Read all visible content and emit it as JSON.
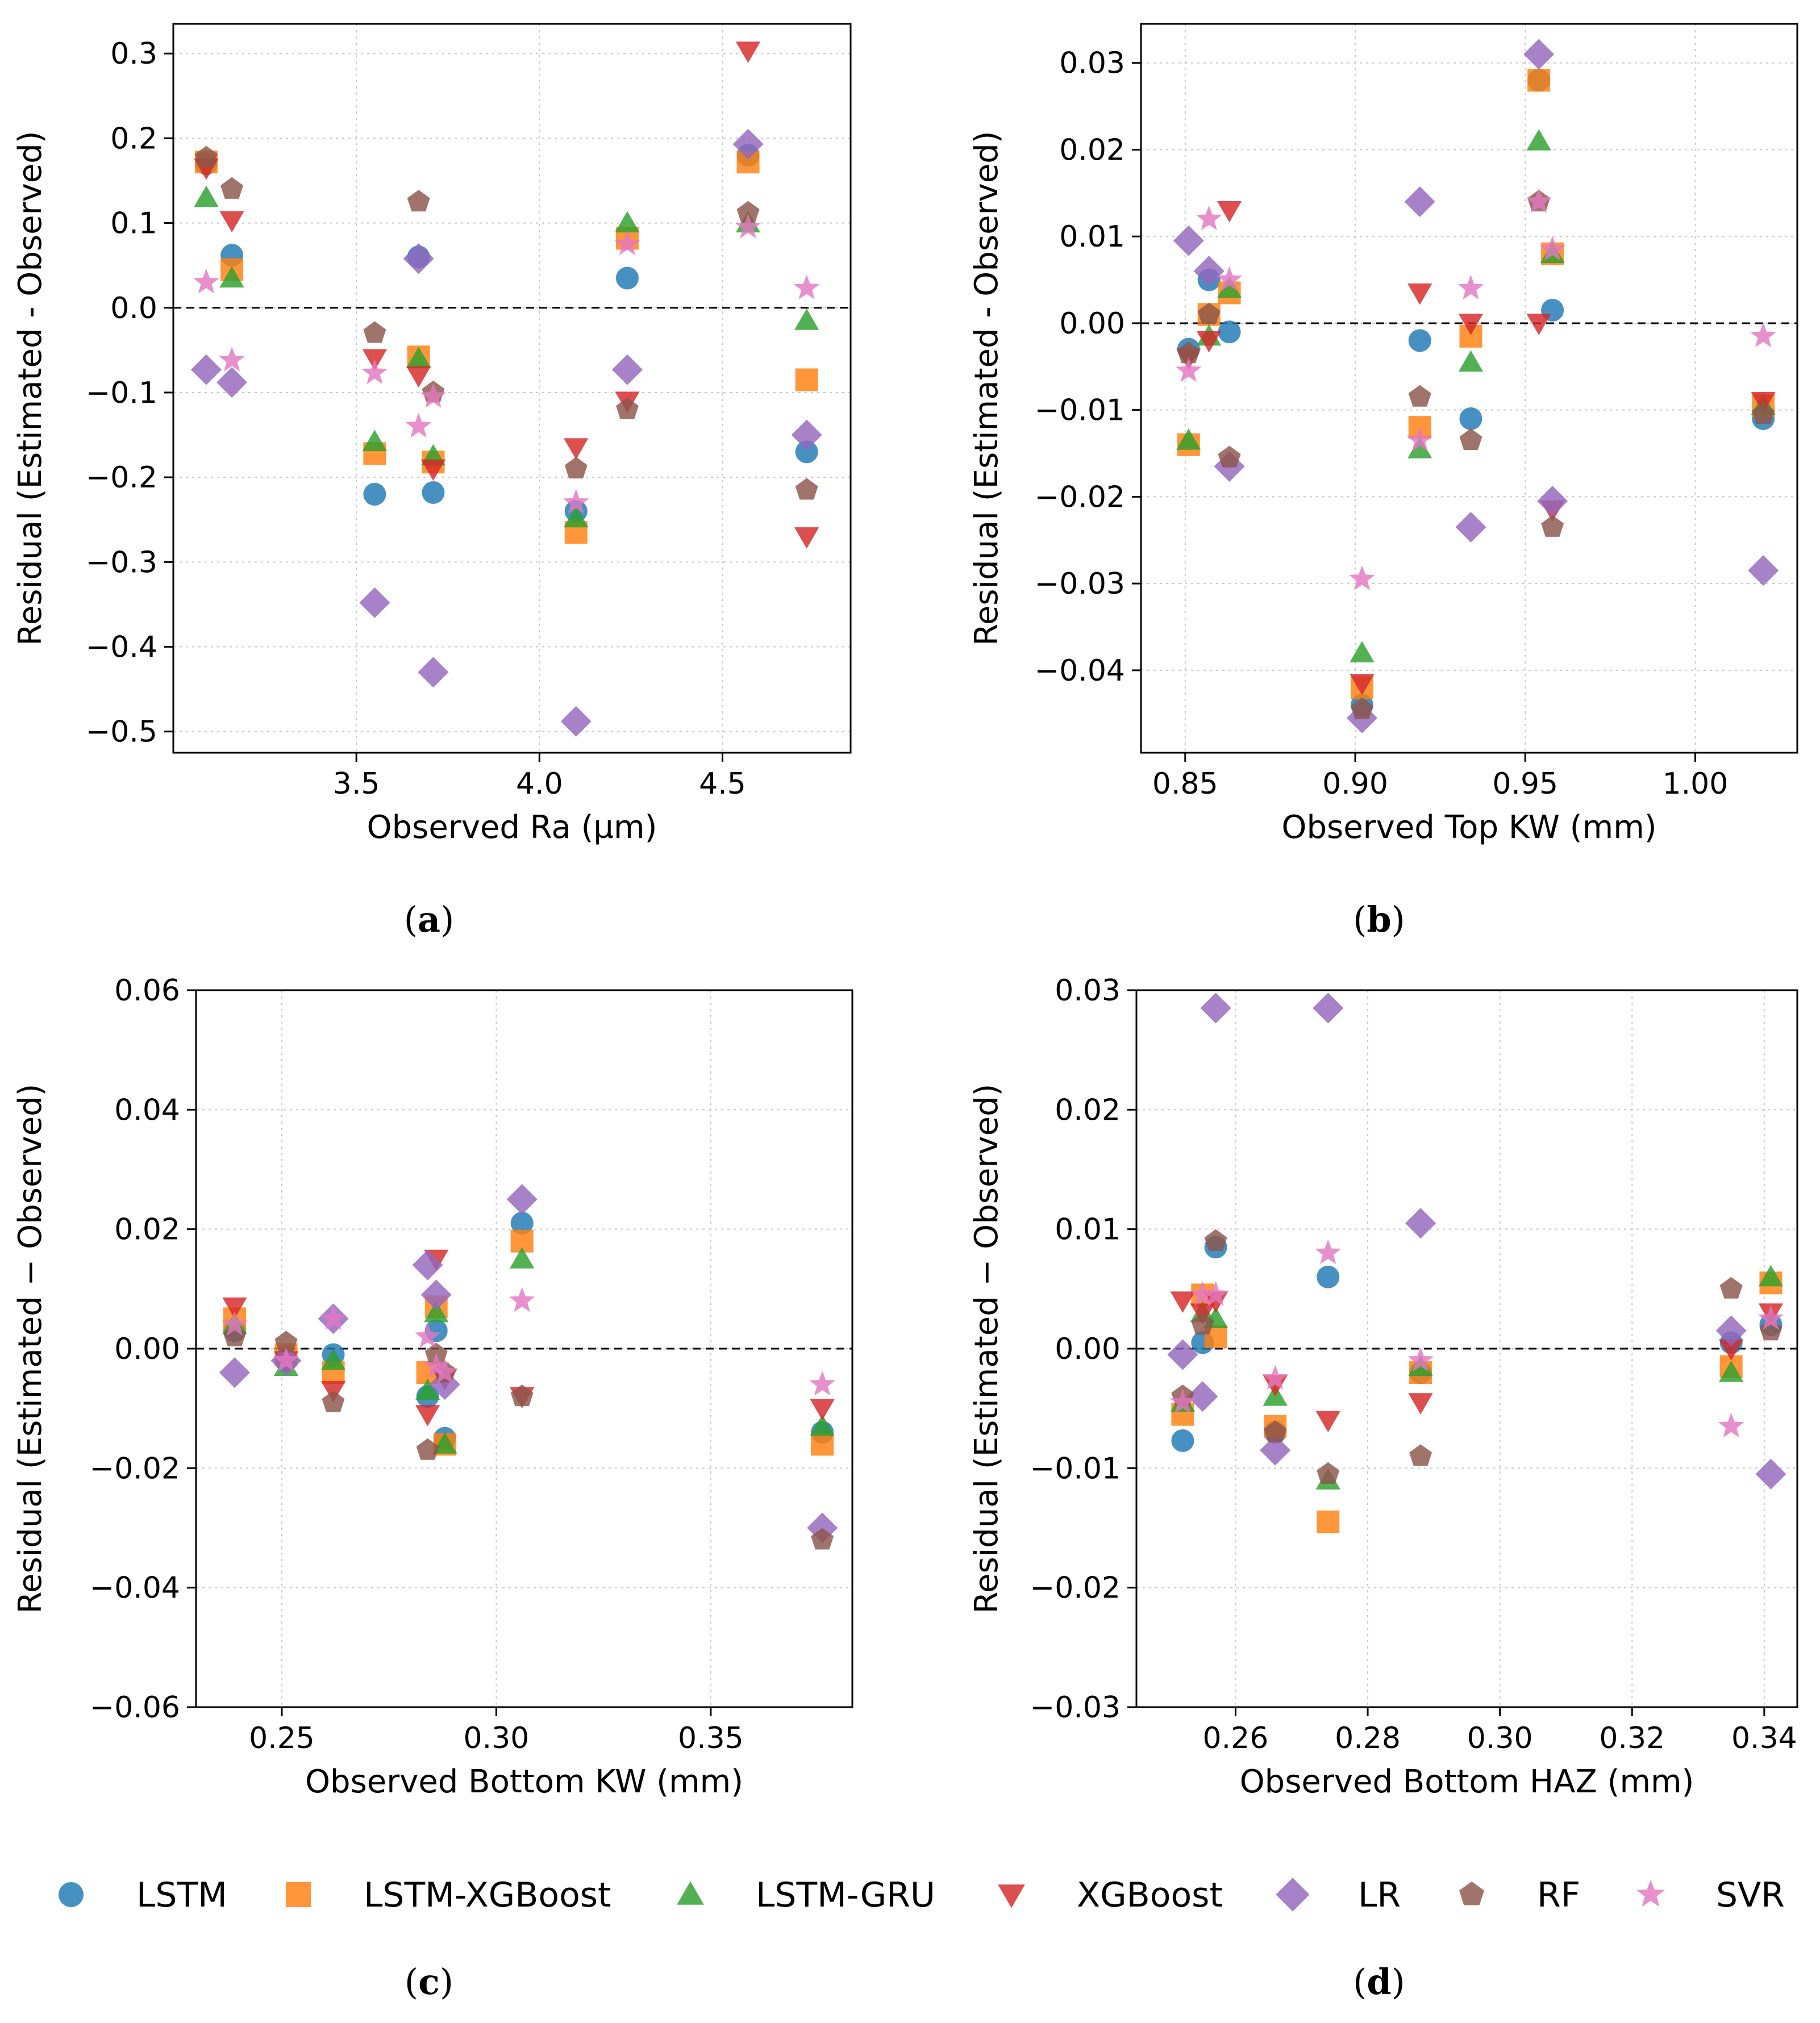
{
  "series_styles": [
    {
      "name": "LSTM",
      "color": "#1f77b4",
      "marker": "circle"
    },
    {
      "name": "LSTM-XGBoost",
      "color": "#ff7f0e",
      "marker": "square"
    },
    {
      "name": "LSTM-GRU",
      "color": "#2ca02c",
      "marker": "triangle-up"
    },
    {
      "name": "XGBoost",
      "color": "#d62728",
      "marker": "triangle-down"
    },
    {
      "name": "LR",
      "color": "#9467bd",
      "marker": "diamond"
    },
    {
      "name": "RF",
      "color": "#8c564b",
      "marker": "pentagon"
    },
    {
      "name": "SVR",
      "color": "#e377c2",
      "marker": "star"
    }
  ],
  "legend": [
    "LSTM",
    "LSTM-XGBoost",
    "LSTM-GRU",
    "XGBoost",
    "LR",
    "RF",
    "SVR"
  ],
  "chart_data": [
    {
      "type": "scatter",
      "panel": "(a)",
      "caption_letter": "a",
      "xlabel": "Observed Ra (µm)",
      "ylabel": "Residual (Estimated - Observed)",
      "xlim": [
        3.0,
        4.85
      ],
      "ylim": [
        -0.525,
        0.335
      ],
      "xticks": [
        3.5,
        4.0,
        4.5
      ],
      "xtick_labels": [
        "3.5",
        "4.0",
        "4.5"
      ],
      "yticks": [
        -0.5,
        -0.4,
        -0.3,
        -0.2,
        -0.1,
        0.0,
        0.1,
        0.2,
        0.3
      ],
      "ytick_labels": [
        "−0.5",
        "−0.4",
        "−0.3",
        "−0.2",
        "−0.1",
        "0.0",
        "0.1",
        "0.2",
        "0.3"
      ],
      "x": [
        3.09,
        3.16,
        3.55,
        3.67,
        3.71,
        4.1,
        4.24,
        4.57,
        4.73
      ],
      "series": [
        {
          "name": "LSTM",
          "values": [
            0.17,
            0.062,
            -0.22,
            0.06,
            -0.218,
            -0.24,
            0.035,
            0.18,
            -0.17
          ]
        },
        {
          "name": "LSTM-XGBoost",
          "values": [
            0.172,
            0.045,
            -0.172,
            -0.058,
            -0.182,
            -0.265,
            0.082,
            0.172,
            -0.085
          ]
        },
        {
          "name": "LSTM-GRU",
          "values": [
            0.13,
            0.035,
            -0.158,
            -0.06,
            -0.175,
            -0.248,
            0.1,
            0.1,
            -0.015
          ]
        },
        {
          "name": "XGBoost",
          "values": [
            0.165,
            0.103,
            -0.06,
            -0.08,
            -0.19,
            -0.165,
            -0.11,
            0.303,
            -0.27
          ]
        },
        {
          "name": "LR",
          "values": [
            -0.073,
            -0.088,
            -0.348,
            0.058,
            -0.43,
            -0.488,
            -0.073,
            0.193,
            -0.15
          ]
        },
        {
          "name": "RF",
          "values": [
            0.177,
            0.14,
            -0.03,
            0.125,
            -0.1,
            -0.19,
            -0.12,
            0.112,
            -0.215
          ]
        },
        {
          "name": "SVR",
          "values": [
            0.03,
            -0.062,
            -0.077,
            -0.14,
            -0.105,
            -0.23,
            0.075,
            0.095,
            0.023
          ]
        }
      ]
    },
    {
      "type": "scatter",
      "panel": "(b)",
      "caption_letter": "b",
      "xlabel": "Observed Top KW (mm)",
      "ylabel": "Residual (Estimated - Observed)",
      "xlim": [
        0.837,
        1.03
      ],
      "ylim": [
        -0.0495,
        0.0345
      ],
      "xticks": [
        0.85,
        0.9,
        0.95,
        1.0
      ],
      "xtick_labels": [
        "0.85",
        "0.90",
        "0.95",
        "1.00"
      ],
      "yticks": [
        -0.04,
        -0.03,
        -0.02,
        -0.01,
        0.0,
        0.01,
        0.02,
        0.03
      ],
      "ytick_labels": [
        "−0.04",
        "−0.03",
        "−0.02",
        "−0.01",
        "0.00",
        "0.01",
        "0.02",
        "0.03"
      ],
      "x": [
        0.851,
        0.857,
        0.863,
        0.902,
        0.919,
        0.934,
        0.954,
        0.958,
        1.02
      ],
      "series": [
        {
          "name": "LSTM",
          "values": [
            -0.003,
            0.005,
            -0.001,
            -0.044,
            -0.002,
            -0.011,
            0.028,
            0.0015,
            -0.011
          ]
        },
        {
          "name": "LSTM-XGBoost",
          "values": [
            -0.014,
            0.001,
            0.0035,
            -0.042,
            -0.012,
            -0.0015,
            0.028,
            0.008,
            -0.0095
          ]
        },
        {
          "name": "LSTM-GRU",
          "values": [
            -0.0135,
            -0.0015,
            0.004,
            -0.038,
            -0.0145,
            -0.0045,
            0.021,
            0.008,
            -0.0095
          ]
        },
        {
          "name": "XGBoost",
          "values": [
            -0.004,
            -0.002,
            0.013,
            -0.0415,
            0.0035,
            0.0,
            0.0,
            -0.0215,
            -0.009
          ]
        },
        {
          "name": "LR",
          "values": [
            0.0095,
            0.006,
            -0.0165,
            -0.0455,
            0.014,
            -0.0235,
            0.031,
            -0.0205,
            -0.0285
          ]
        },
        {
          "name": "RF",
          "values": [
            -0.0035,
            0.001,
            -0.0155,
            -0.0445,
            -0.0085,
            -0.0135,
            0.014,
            -0.0235,
            -0.0105
          ]
        },
        {
          "name": "SVR",
          "values": [
            -0.0055,
            0.012,
            0.005,
            -0.0295,
            -0.0135,
            0.004,
            0.014,
            0.0085,
            -0.0015
          ]
        }
      ]
    },
    {
      "type": "scatter",
      "panel": "(c)",
      "caption_letter": "c",
      "xlabel": "Observed Bottom KW (mm)",
      "ylabel": "Residual (Estimated − Observed)",
      "xlim": [
        0.23,
        0.383
      ],
      "ylim": [
        -0.06,
        0.06
      ],
      "xticks": [
        0.25,
        0.3,
        0.35
      ],
      "xtick_labels": [
        "0.25",
        "0.30",
        "0.35"
      ],
      "yticks": [
        -0.06,
        -0.04,
        -0.02,
        0.0,
        0.02,
        0.04,
        0.06
      ],
      "ytick_labels": [
        "−0.06",
        "−0.04",
        "−0.02",
        "0.00",
        "0.02",
        "0.04",
        "0.06"
      ],
      "x": [
        0.239,
        0.251,
        0.262,
        0.284,
        0.286,
        0.288,
        0.306,
        0.376
      ],
      "series": [
        {
          "name": "LSTM",
          "values": [
            0.003,
            -0.002,
            -0.001,
            -0.008,
            0.003,
            -0.015,
            0.021,
            -0.014
          ]
        },
        {
          "name": "LSTM-XGBoost",
          "values": [
            0.005,
            -0.001,
            -0.004,
            -0.004,
            0.007,
            -0.016,
            0.018,
            -0.016
          ]
        },
        {
          "name": "LSTM-GRU",
          "values": [
            0.004,
            -0.003,
            -0.002,
            -0.007,
            0.006,
            -0.016,
            0.015,
            -0.013
          ]
        },
        {
          "name": "XGBoost",
          "values": [
            0.007,
            -0.002,
            -0.007,
            -0.011,
            0.015,
            -0.005,
            -0.008,
            -0.01
          ]
        },
        {
          "name": "LR",
          "values": [
            -0.004,
            -0.002,
            0.005,
            0.014,
            0.009,
            -0.006,
            0.025,
            -0.03
          ]
        },
        {
          "name": "RF",
          "values": [
            0.002,
            0.001,
            -0.009,
            -0.017,
            -0.001,
            -0.004,
            -0.008,
            -0.032
          ]
        },
        {
          "name": "SVR",
          "values": [
            0.004,
            -0.002,
            0.005,
            0.002,
            -0.003,
            -0.004,
            0.008,
            -0.006
          ]
        }
      ]
    },
    {
      "type": "scatter",
      "panel": "(d)",
      "caption_letter": "d",
      "xlabel": "Observed Bottom HAZ (mm)",
      "ylabel": "Residual (Estimated − Observed)",
      "xlim": [
        0.245,
        0.345
      ],
      "ylim": [
        -0.03,
        0.03
      ],
      "xticks": [
        0.26,
        0.28,
        0.3,
        0.32,
        0.34
      ],
      "xtick_labels": [
        "0.26",
        "0.28",
        "0.30",
        "0.32",
        "0.34"
      ],
      "yticks": [
        -0.03,
        -0.02,
        -0.01,
        0.0,
        0.01,
        0.02,
        0.03
      ],
      "ytick_labels": [
        "−0.03",
        "−0.02",
        "−0.01",
        "0.00",
        "0.01",
        "0.02",
        "0.03"
      ],
      "x": [
        0.252,
        0.255,
        0.257,
        0.266,
        0.274,
        0.288,
        0.335,
        0.341
      ],
      "series": [
        {
          "name": "LSTM",
          "values": [
            -0.0077,
            0.0005,
            0.0085,
            -0.007,
            0.006,
            -0.002,
            0.0005,
            0.002
          ]
        },
        {
          "name": "LSTM-XGBoost",
          "values": [
            -0.0055,
            0.0045,
            0.001,
            -0.0065,
            -0.0145,
            -0.002,
            -0.0015,
            0.0055
          ]
        },
        {
          "name": "LSTM-GRU",
          "values": [
            -0.0045,
            0.003,
            0.0025,
            -0.004,
            -0.011,
            -0.0015,
            -0.002,
            0.006
          ]
        },
        {
          "name": "XGBoost",
          "values": [
            0.004,
            0.003,
            0.004,
            -0.003,
            -0.006,
            -0.0045,
            0.0,
            0.003
          ]
        },
        {
          "name": "LR",
          "values": [
            -0.0005,
            -0.004,
            0.0285,
            -0.0085,
            0.0285,
            0.0105,
            0.0015,
            -0.0105
          ]
        },
        {
          "name": "RF",
          "values": [
            -0.004,
            0.002,
            0.009,
            -0.007,
            -0.0105,
            -0.009,
            0.005,
            0.0015
          ]
        },
        {
          "name": "SVR",
          "values": [
            -0.0045,
            0.0045,
            0.0045,
            -0.0025,
            0.008,
            -0.001,
            -0.0065,
            0.0025
          ]
        }
      ]
    }
  ]
}
